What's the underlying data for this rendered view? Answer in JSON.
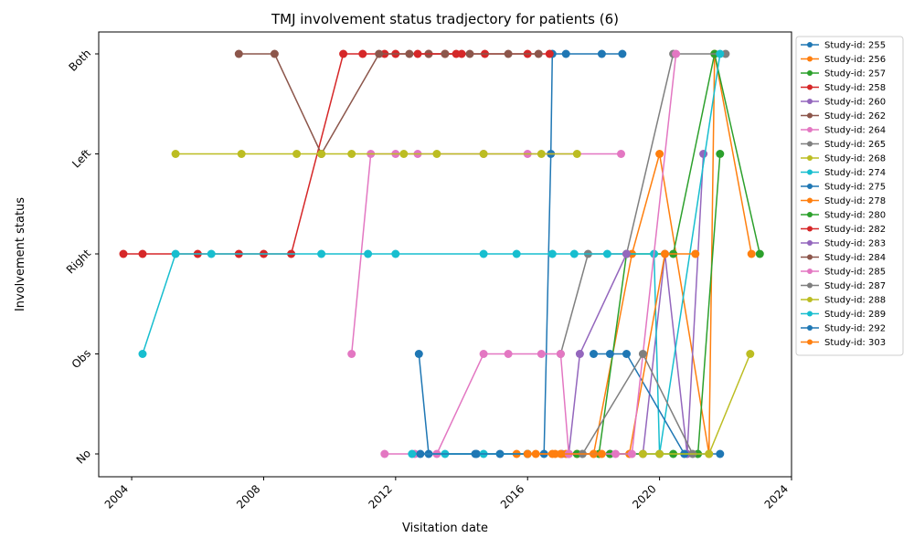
{
  "chart_data": {
    "type": "line",
    "title": "TMJ involvement status tradjectory for patients (6)",
    "xlabel": "Visitation date",
    "ylabel": "Involvement status",
    "x_axis": "date",
    "xlim": [
      "2003-01-01",
      "2024-01-01"
    ],
    "x_ticks": [
      "2004",
      "2008",
      "2012",
      "2016",
      "2020",
      "2024"
    ],
    "y_categories": [
      "No",
      "Obs",
      "Right",
      "Left",
      "Both"
    ],
    "legend_position": "outside-right",
    "grid": false,
    "series": [
      {
        "name": "Study-id: 255",
        "color": "#1f77b4",
        "points": [
          [
            "2012-09-15",
            "Obs"
          ],
          [
            "2013-01-01",
            "No"
          ],
          [
            "2014-06-15",
            "No"
          ],
          [
            "2015-03-01",
            "No"
          ],
          [
            "2016-07-01",
            "No"
          ],
          [
            "2016-09-15",
            "Left"
          ],
          [
            "2016-10-01",
            "Both"
          ],
          [
            "2017-03-01",
            "Both"
          ],
          [
            "2018-04-01",
            "Both"
          ],
          [
            "2018-11-15",
            "Both"
          ]
        ]
      },
      {
        "name": "Study-id: 256",
        "color": "#ff7f0e",
        "points": [
          [
            "2015-09-01",
            "No"
          ],
          [
            "2016-04-01",
            "No"
          ],
          [
            "2016-11-01",
            "No"
          ],
          [
            "2017-07-01",
            "No"
          ],
          [
            "2018-01-01",
            "No"
          ],
          [
            "2019-03-01",
            "Right"
          ],
          [
            "2020-01-01",
            "Left"
          ],
          [
            "2021-07-01",
            "No"
          ],
          [
            "2021-09-01",
            "Both"
          ],
          [
            "2022-10-15",
            "Right"
          ]
        ]
      },
      {
        "name": "Study-id: 257",
        "color": "#2ca02c",
        "points": [
          [
            "2018-03-01",
            "No"
          ],
          [
            "2019-01-01",
            "Right"
          ],
          [
            "2020-06-01",
            "Right"
          ],
          [
            "2021-09-01",
            "Both"
          ],
          [
            "2023-01-15",
            "Right"
          ]
        ]
      },
      {
        "name": "Study-id: 258",
        "color": "#d62728",
        "points": [
          [
            "2003-10-01",
            "Right"
          ],
          [
            "2004-05-01",
            "Right"
          ],
          [
            "2006-01-01",
            "Right"
          ],
          [
            "2007-04-01",
            "Right"
          ],
          [
            "2008-01-01",
            "Right"
          ],
          [
            "2008-11-01",
            "Right"
          ],
          [
            "2010-06-01",
            "Both"
          ],
          [
            "2011-01-01",
            "Both"
          ],
          [
            "2011-09-01",
            "Both"
          ],
          [
            "2012-01-01",
            "Both"
          ],
          [
            "2013-01-01",
            "Both"
          ],
          [
            "2013-11-01",
            "Both"
          ],
          [
            "2014-09-15",
            "Both"
          ],
          [
            "2016-01-01",
            "Both"
          ],
          [
            "2016-09-01",
            "Both"
          ]
        ]
      },
      {
        "name": "Study-id: 260",
        "color": "#9467bd",
        "points": [
          [
            "2017-01-15",
            "No"
          ],
          [
            "2018-07-01",
            "No"
          ],
          [
            "2019-07-01",
            "No"
          ],
          [
            "2020-03-01",
            "Right"
          ],
          [
            "2020-11-01",
            "No"
          ],
          [
            "2021-05-01",
            "Left"
          ]
        ]
      },
      {
        "name": "Study-id: 262",
        "color": "#8c564b",
        "points": [
          [
            "2007-04-01",
            "Both"
          ],
          [
            "2008-05-01",
            "Both"
          ],
          [
            "2009-10-01",
            "Left"
          ],
          [
            "2011-07-01",
            "Both"
          ],
          [
            "2012-06-01",
            "Both"
          ],
          [
            "2013-01-01",
            "Both"
          ],
          [
            "2014-04-01",
            "Both"
          ],
          [
            "2015-06-01",
            "Both"
          ],
          [
            "2016-05-01",
            "Both"
          ]
        ]
      },
      {
        "name": "Study-id: 264",
        "color": "#e377c2",
        "points": [
          [
            "2010-09-01",
            "Obs"
          ],
          [
            "2011-04-01",
            "Left"
          ],
          [
            "2012-01-01",
            "Left"
          ],
          [
            "2012-09-01",
            "Left"
          ],
          [
            "2014-09-01",
            "Left"
          ],
          [
            "2016-01-01",
            "Left"
          ],
          [
            "2018-11-01",
            "Left"
          ]
        ]
      },
      {
        "name": "Study-id: 265",
        "color": "#7f7f7f",
        "points": [
          [
            "2017-01-01",
            "Obs"
          ],
          [
            "2017-11-01",
            "Right"
          ],
          [
            "2019-01-01",
            "Right"
          ],
          [
            "2020-06-01",
            "Both"
          ],
          [
            "2022-01-01",
            "Both"
          ]
        ]
      },
      {
        "name": "Study-id: 268",
        "color": "#bcbd22",
        "points": [
          [
            "2005-05-01",
            "Left"
          ],
          [
            "2007-05-01",
            "Left"
          ],
          [
            "2009-01-01",
            "Left"
          ],
          [
            "2009-10-01",
            "Left"
          ],
          [
            "2010-09-01",
            "Left"
          ],
          [
            "2012-04-01",
            "Left"
          ],
          [
            "2013-04-01",
            "Left"
          ],
          [
            "2014-09-01",
            "Left"
          ],
          [
            "2016-06-01",
            "Left"
          ],
          [
            "2017-07-01",
            "Left"
          ]
        ]
      },
      {
        "name": "Study-id: 274",
        "color": "#17becf",
        "points": [
          [
            "2004-05-01",
            "Obs"
          ],
          [
            "2005-05-01",
            "Right"
          ],
          [
            "2006-06-01",
            "Right"
          ],
          [
            "2009-10-01",
            "Right"
          ],
          [
            "2011-03-01",
            "Right"
          ],
          [
            "2012-01-01",
            "Right"
          ],
          [
            "2014-09-01",
            "Right"
          ],
          [
            "2015-09-01",
            "Right"
          ],
          [
            "2016-10-01",
            "Right"
          ],
          [
            "2017-06-01",
            "Right"
          ],
          [
            "2018-06-01",
            "Right"
          ],
          [
            "2019-11-01",
            "Right"
          ],
          [
            "2020-01-01",
            "No"
          ],
          [
            "2021-11-01",
            "Both"
          ]
        ]
      },
      {
        "name": "Study-id: 275",
        "color": "#1f77b4",
        "points": [
          [
            "2018-01-01",
            "Obs"
          ],
          [
            "2018-07-01",
            "Obs"
          ],
          [
            "2019-01-01",
            "Obs"
          ],
          [
            "2020-10-01",
            "No"
          ],
          [
            "2021-11-01",
            "No"
          ]
        ]
      },
      {
        "name": "Study-id: 278",
        "color": "#ff7f0e",
        "points": [
          [
            "2016-10-01",
            "No"
          ],
          [
            "2017-03-01",
            "No"
          ],
          [
            "2018-01-01",
            "No"
          ],
          [
            "2019-02-01",
            "No"
          ],
          [
            "2020-03-01",
            "Right"
          ],
          [
            "2021-02-01",
            "Right"
          ]
        ]
      },
      {
        "name": "Study-id: 280",
        "color": "#2ca02c",
        "points": [
          [
            "2017-07-01",
            "No"
          ],
          [
            "2018-07-01",
            "No"
          ],
          [
            "2020-06-01",
            "No"
          ],
          [
            "2021-03-01",
            "No"
          ],
          [
            "2021-11-01",
            "Left"
          ]
        ]
      },
      {
        "name": "Study-id: 282",
        "color": "#d62728",
        "points": [
          [
            "2012-09-01",
            "Both"
          ],
          [
            "2013-07-01",
            "Both"
          ],
          [
            "2014-01-01",
            "Both"
          ]
        ]
      },
      {
        "name": "Study-id: 283",
        "color": "#9467bd",
        "points": [
          [
            "2017-04-01",
            "No"
          ],
          [
            "2017-08-01",
            "Obs"
          ],
          [
            "2019-01-01",
            "Right"
          ]
        ]
      },
      {
        "name": "Study-id: 284",
        "color": "#8c564b",
        "points": [
          [
            "2013-07-01",
            "Both"
          ]
        ]
      },
      {
        "name": "Study-id: 285",
        "color": "#e377c2",
        "points": [
          [
            "2011-09-01",
            "No"
          ],
          [
            "2012-08-01",
            "No"
          ],
          [
            "2013-04-01",
            "No"
          ],
          [
            "2014-09-01",
            "Obs"
          ],
          [
            "2015-06-01",
            "Obs"
          ],
          [
            "2016-06-01",
            "Obs"
          ],
          [
            "2017-01-01",
            "Obs"
          ],
          [
            "2017-04-01",
            "No"
          ],
          [
            "2018-09-01",
            "No"
          ],
          [
            "2019-03-01",
            "No"
          ],
          [
            "2020-07-01",
            "Both"
          ]
        ]
      },
      {
        "name": "Study-id: 287",
        "color": "#7f7f7f",
        "points": [
          [
            "2017-09-01",
            "No"
          ],
          [
            "2019-07-01",
            "Obs"
          ],
          [
            "2021-01-01",
            "No"
          ]
        ]
      },
      {
        "name": "Study-id: 288",
        "color": "#bcbd22",
        "points": [
          [
            "2019-07-01",
            "No"
          ],
          [
            "2020-01-01",
            "No"
          ],
          [
            "2021-07-01",
            "No"
          ],
          [
            "2022-10-01",
            "Obs"
          ]
        ]
      },
      {
        "name": "Study-id: 289",
        "color": "#17becf",
        "points": [
          [
            "2012-07-01",
            "No"
          ],
          [
            "2013-07-01",
            "No"
          ],
          [
            "2014-09-01",
            "No"
          ],
          [
            "2016-01-01",
            "No"
          ]
        ]
      },
      {
        "name": "Study-id: 292",
        "color": "#1f77b4",
        "points": [
          [
            "2012-10-01",
            "No"
          ],
          [
            "2014-06-01",
            "No"
          ],
          [
            "2016-01-01",
            "No"
          ]
        ]
      },
      {
        "name": "Study-id: 303",
        "color": "#ff7f0e",
        "points": [
          [
            "2016-01-01",
            "No"
          ],
          [
            "2017-01-01",
            "No"
          ],
          [
            "2018-04-01",
            "No"
          ]
        ]
      }
    ]
  }
}
